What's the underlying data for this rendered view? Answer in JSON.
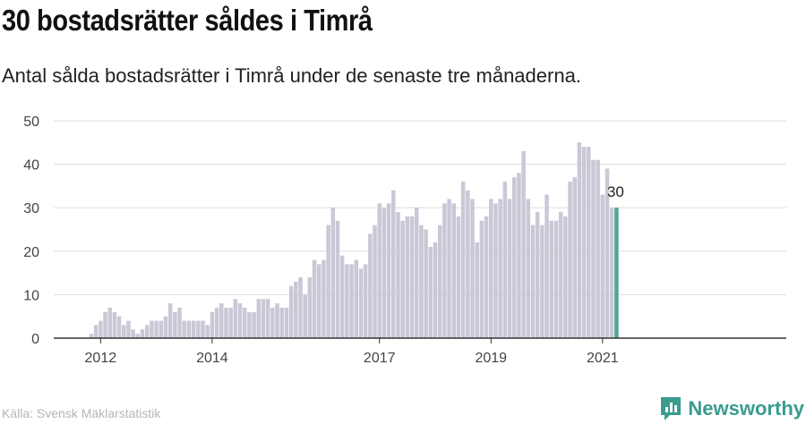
{
  "title": "30 bostadsrätter såldes i Timrå",
  "subtitle": "Antal sålda bostadsrätter i Timrå under de senaste tre månaderna.",
  "source": "Källa: Svensk Mäklarstatistik",
  "brand": "Newsworthy",
  "colors": {
    "bar": "#c9c8d6",
    "highlight": "#4fa598",
    "grid": "#dddddd",
    "axis": "#333333",
    "brand": "#3a9b8f"
  },
  "chart_data": {
    "type": "bar",
    "ylim": [
      0,
      50
    ],
    "yticks": [
      0,
      10,
      20,
      30,
      40,
      50
    ],
    "xtick_labels": [
      "2012",
      "2014",
      "2017",
      "2019",
      "2021"
    ],
    "grid": true,
    "highlight_label": "30",
    "start_period": "2011-10",
    "period": "month",
    "values": [
      0,
      1,
      3,
      4,
      6,
      7,
      6,
      5,
      3,
      4,
      2,
      1,
      2,
      3,
      4,
      4,
      4,
      5,
      8,
      6,
      7,
      4,
      4,
      4,
      4,
      4,
      3,
      6,
      7,
      8,
      7,
      7,
      9,
      8,
      7,
      6,
      6,
      9,
      9,
      9,
      7,
      8,
      7,
      7,
      12,
      13,
      14,
      10,
      14,
      18,
      17,
      18,
      26,
      30,
      27,
      19,
      17,
      17,
      18,
      16,
      17,
      24,
      26,
      31,
      30,
      31,
      34,
      29,
      27,
      28,
      28,
      30,
      26,
      25,
      21,
      22,
      26,
      31,
      32,
      31,
      28,
      36,
      34,
      32,
      22,
      27,
      28,
      32,
      31,
      32,
      36,
      32,
      37,
      38,
      43,
      32,
      26,
      29,
      26,
      33,
      27,
      27,
      29,
      28,
      36,
      37,
      45,
      44,
      44,
      41,
      41,
      33,
      39,
      30,
      30
    ]
  }
}
